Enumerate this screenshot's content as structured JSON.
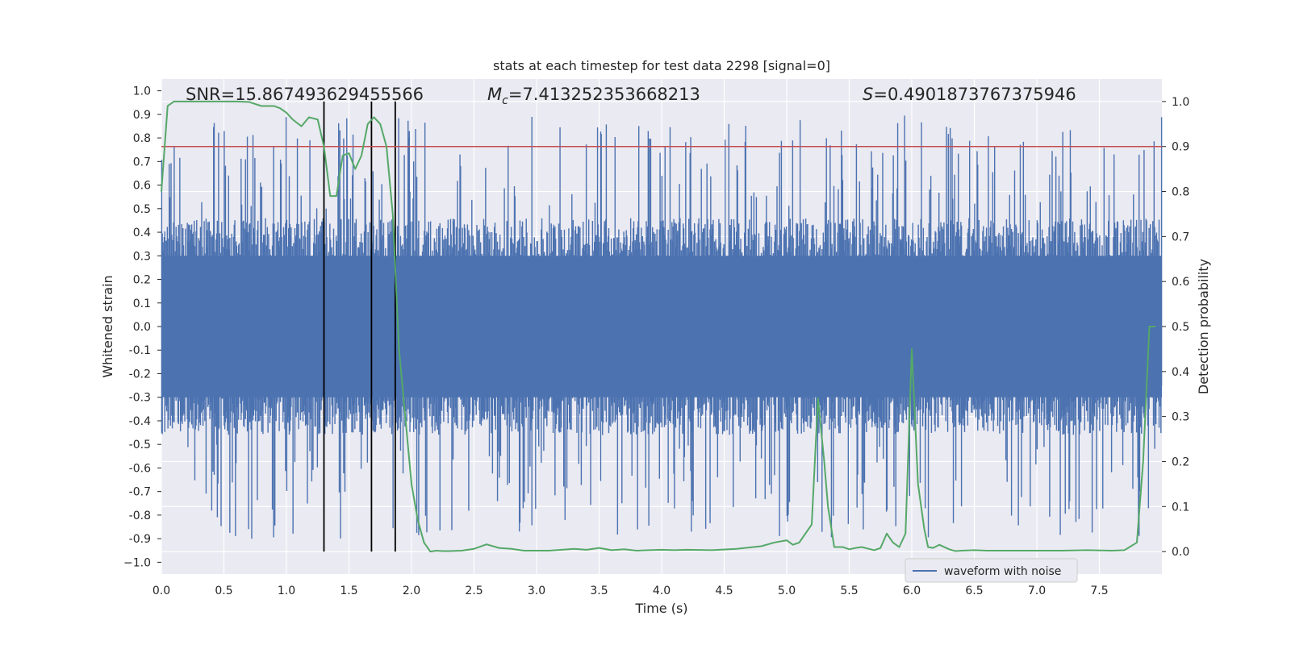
{
  "chart_data": {
    "type": "line",
    "title": "stats at each timestep for test data 2298 [signal=0]",
    "xlabel": "Time (s)",
    "ylabel_left": "Whitened strain",
    "ylabel_right": "Detection probability",
    "xlim": [
      0,
      8
    ],
    "ylim_left": [
      -1.05,
      1.05
    ],
    "ylim_right": [
      -0.05,
      1.05
    ],
    "x_ticks": [
      "0.0",
      "0.5",
      "1.0",
      "1.5",
      "2.0",
      "2.5",
      "3.0",
      "3.5",
      "4.0",
      "4.5",
      "5.0",
      "5.5",
      "6.0",
      "6.5",
      "7.0",
      "7.5"
    ],
    "y_ticks_left": [
      "1.0",
      "0.9",
      "0.8",
      "0.7",
      "0.6",
      "0.5",
      "0.4",
      "0.3",
      "0.2",
      "0.1",
      "0.0",
      "-0.1",
      "-0.2",
      "-0.3",
      "-0.4",
      "-0.5",
      "-0.6",
      "-0.7",
      "-0.8",
      "-0.9",
      "−1.0"
    ],
    "y_ticks_right": [
      "1.0",
      "0.9",
      "0.8",
      "0.7",
      "0.6",
      "0.5",
      "0.4",
      "0.3",
      "0.2",
      "0.1",
      "0.0"
    ],
    "grid": true,
    "annotations": {
      "snr": "SNR=15.867493629455566",
      "mc_symbol": "M",
      "mc_sub": "c",
      "mc_value": "=7.413252353668213",
      "s_symbol": "S",
      "s_value": "=0.4901873767375946"
    },
    "threshold": {
      "value": 0.9,
      "axis": "right",
      "color": "#c44e52"
    },
    "vlines_x": [
      1.3,
      1.68,
      1.87
    ],
    "waveform": {
      "name": "waveform with noise",
      "color": "#4c72b0",
      "envelope_typical": 0.4,
      "envelope_max": 1.0,
      "samples": 1600
    },
    "probability": {
      "color": "#55a868",
      "x": [
        0.0,
        0.05,
        0.1,
        0.2,
        0.4,
        0.6,
        0.7,
        0.8,
        0.9,
        0.95,
        1.0,
        1.05,
        1.12,
        1.18,
        1.25,
        1.3,
        1.35,
        1.4,
        1.45,
        1.5,
        1.55,
        1.6,
        1.65,
        1.7,
        1.75,
        1.8,
        1.85,
        1.9,
        1.95,
        2.0,
        2.05,
        2.1,
        2.15,
        2.2,
        2.25,
        2.3,
        2.4,
        2.5,
        2.6,
        2.7,
        2.8,
        2.9,
        3.0,
        3.1,
        3.2,
        3.3,
        3.4,
        3.5,
        3.6,
        3.7,
        3.8,
        3.9,
        4.0,
        4.1,
        4.2,
        4.4,
        4.6,
        4.8,
        4.9,
        5.0,
        5.05,
        5.1,
        5.2,
        5.25,
        5.3,
        5.33,
        5.38,
        5.45,
        5.5,
        5.55,
        5.6,
        5.7,
        5.75,
        5.8,
        5.85,
        5.9,
        5.95,
        6.0,
        6.05,
        6.1,
        6.13,
        6.17,
        6.22,
        6.3,
        6.35,
        6.4,
        6.5,
        6.6,
        6.8,
        7.0,
        7.2,
        7.4,
        7.6,
        7.7,
        7.8,
        7.85,
        7.9,
        7.95
      ],
      "y": [
        0.8,
        0.99,
        1.0,
        1.0,
        1.0,
        1.0,
        0.999,
        0.99,
        0.99,
        0.985,
        0.975,
        0.96,
        0.945,
        0.965,
        0.96,
        0.9,
        0.79,
        0.79,
        0.88,
        0.885,
        0.85,
        0.88,
        0.95,
        0.965,
        0.95,
        0.9,
        0.75,
        0.45,
        0.3,
        0.15,
        0.07,
        0.02,
        0.0,
        0.002,
        0.001,
        0.001,
        0.002,
        0.006,
        0.016,
        0.008,
        0.006,
        0.002,
        0.002,
        0.002,
        0.004,
        0.006,
        0.004,
        0.008,
        0.003,
        0.005,
        0.002,
        0.003,
        0.004,
        0.003,
        0.004,
        0.003,
        0.006,
        0.012,
        0.02,
        0.025,
        0.015,
        0.02,
        0.06,
        0.34,
        0.2,
        0.1,
        0.01,
        0.01,
        0.005,
        0.008,
        0.01,
        0.003,
        0.008,
        0.04,
        0.02,
        0.01,
        0.04,
        0.45,
        0.15,
        0.05,
        0.01,
        0.008,
        0.015,
        0.005,
        0.001,
        0.002,
        0.003,
        0.002,
        0.002,
        0.002,
        0.002,
        0.003,
        0.002,
        0.003,
        0.02,
        0.2,
        0.5,
        0.5
      ]
    }
  }
}
